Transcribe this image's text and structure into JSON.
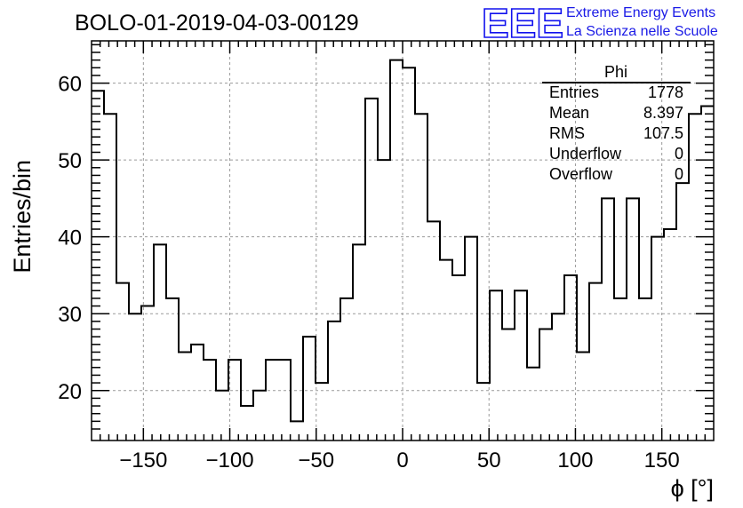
{
  "chart_data": {
    "type": "histogram",
    "title": "BOLO-01-2019-04-03-00129",
    "xlabel": "ϕ [°]",
    "ylabel": "Entries/bin",
    "xlim": [
      -180,
      180
    ],
    "ylim": [
      13.5,
      65.5
    ],
    "grid": true,
    "xticks": [
      -150,
      -100,
      -50,
      0,
      50,
      100,
      150
    ],
    "yticks": [
      20,
      30,
      40,
      50,
      60
    ],
    "bin_edges_start": -180,
    "bin_width": 7.2,
    "values": [
      59,
      56,
      34,
      30,
      31,
      39,
      32,
      25,
      26,
      24,
      20,
      24,
      18,
      20,
      24,
      24,
      16,
      27,
      21,
      29,
      32,
      39,
      58,
      50,
      63,
      62,
      56,
      42,
      37,
      35,
      40,
      21,
      33,
      28,
      33,
      23,
      28,
      30,
      35,
      25,
      34,
      45,
      32,
      45,
      32,
      40,
      41,
      47,
      56,
      57
    ],
    "stats": {
      "name": "Phi",
      "rows": [
        {
          "label": "Entries",
          "value": "1778"
        },
        {
          "label": "Mean",
          "value": "8.397"
        },
        {
          "label": "RMS",
          "value": "107.5"
        },
        {
          "label": "Underflow",
          "value": "0"
        },
        {
          "label": "Overflow",
          "value": "0"
        }
      ]
    }
  },
  "logo": {
    "mark": "EEE",
    "line1": "Extreme Energy Events",
    "line2": "La Scienza nelle Scuole",
    "color": "#1010ee"
  }
}
